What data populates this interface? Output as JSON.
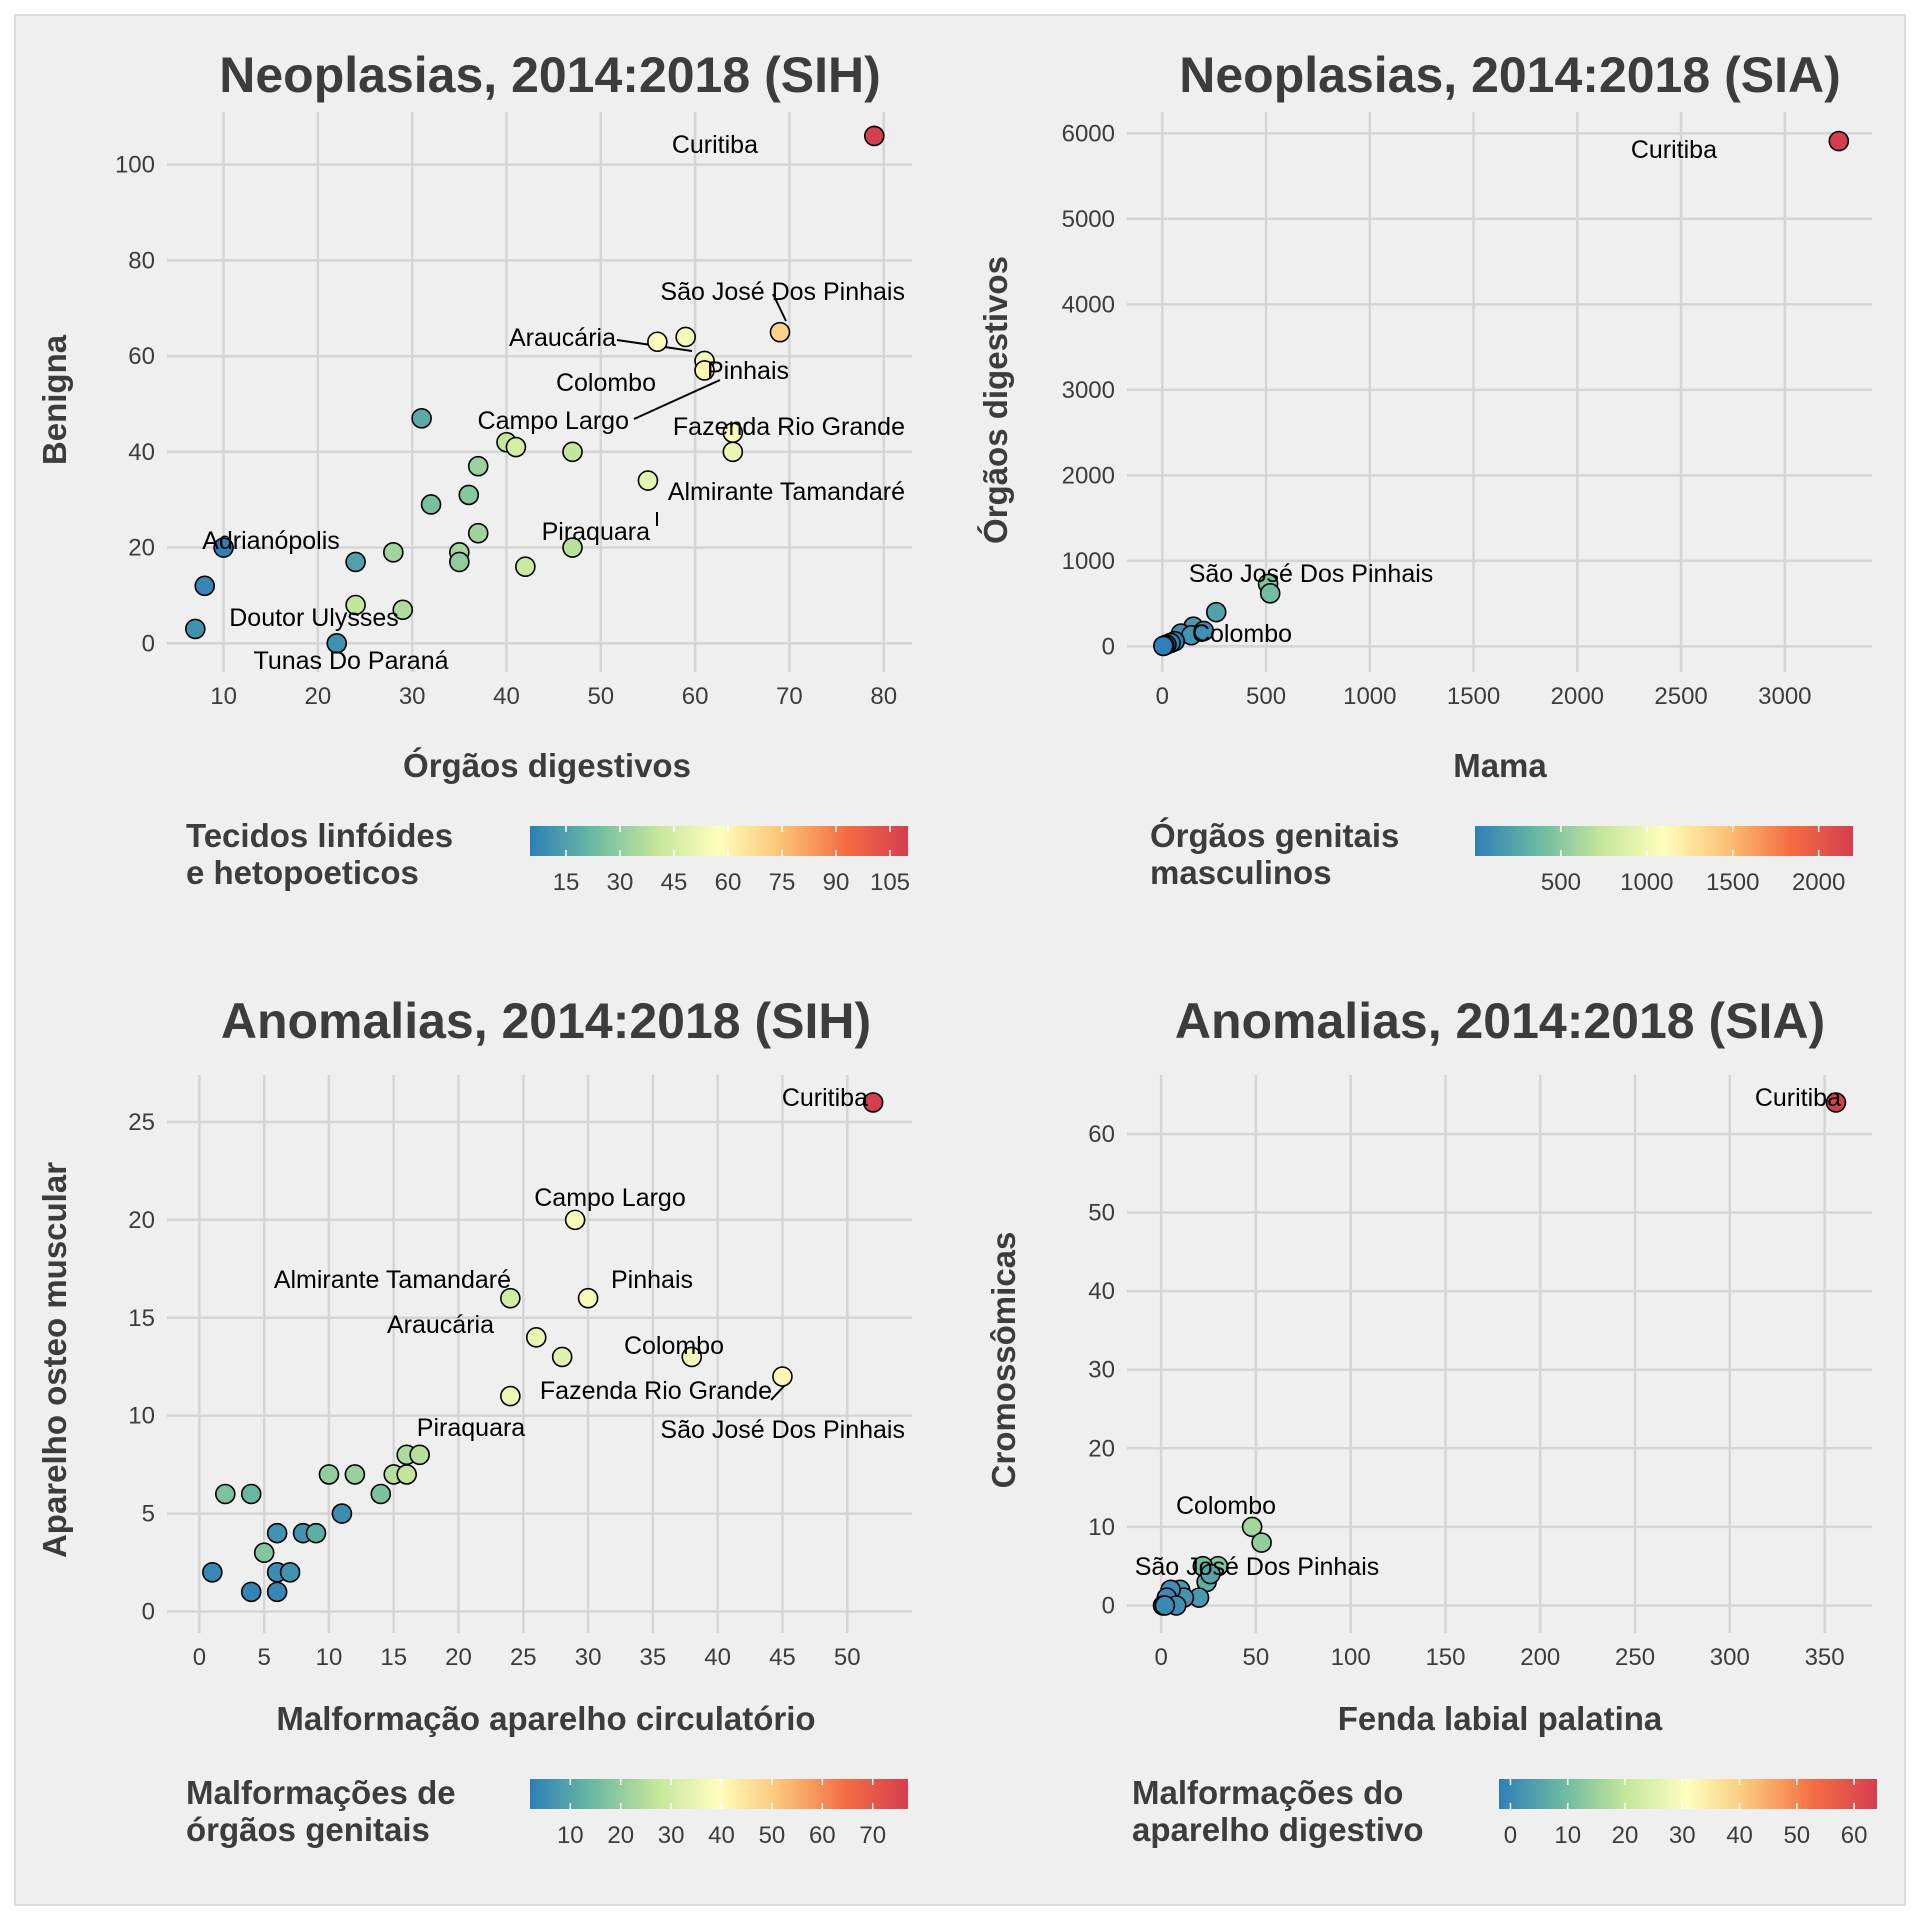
{
  "colors": {
    "background": "#efefef",
    "grid": "#d5d5d5",
    "text": "#3c3c3c",
    "point_stroke": "#000000",
    "scale": [
      "#2f7fb8",
      "#6ab9a2",
      "#c4e69a",
      "#fefebd",
      "#fbc276",
      "#f46d43",
      "#d53e4f"
    ]
  },
  "chart_data": [
    {
      "type": "scatter",
      "title": "Neoplasias, 2014:2018 (SIH)",
      "xlabel": "Órgãos digestivos",
      "ylabel": "Benigna",
      "xlim": [
        4,
        83
      ],
      "ylim": [
        -6,
        111
      ],
      "xticks": [
        10,
        20,
        30,
        40,
        50,
        60,
        70,
        80
      ],
      "yticks": [
        0,
        20,
        40,
        60,
        80,
        100
      ],
      "legend": {
        "title_lines": [
          "Tecidos linfóides",
          "e hetopoeticos"
        ],
        "min": 5,
        "max": 110,
        "ticks": [
          15,
          30,
          45,
          60,
          75,
          90,
          105
        ]
      },
      "points": [
        {
          "x": 79,
          "y": 106,
          "c": 110
        },
        {
          "x": 69,
          "y": 65,
          "c": 70
        },
        {
          "x": 59,
          "y": 64,
          "c": 55
        },
        {
          "x": 56,
          "y": 63,
          "c": 57
        },
        {
          "x": 61,
          "y": 59,
          "c": 55
        },
        {
          "x": 61,
          "y": 57,
          "c": 60
        },
        {
          "x": 31,
          "y": 47,
          "c": 18
        },
        {
          "x": 64,
          "y": 44,
          "c": 57
        },
        {
          "x": 40,
          "y": 42,
          "c": 40
        },
        {
          "x": 41,
          "y": 41,
          "c": 45
        },
        {
          "x": 47,
          "y": 40,
          "c": 40
        },
        {
          "x": 64,
          "y": 40,
          "c": 52
        },
        {
          "x": 37,
          "y": 37,
          "c": 32
        },
        {
          "x": 55,
          "y": 34,
          "c": 50
        },
        {
          "x": 36,
          "y": 31,
          "c": 28
        },
        {
          "x": 32,
          "y": 29,
          "c": 25
        },
        {
          "x": 37,
          "y": 23,
          "c": 33
        },
        {
          "x": 47,
          "y": 20,
          "c": 38
        },
        {
          "x": 28,
          "y": 19,
          "c": 33
        },
        {
          "x": 35,
          "y": 19,
          "c": 34
        },
        {
          "x": 35,
          "y": 17,
          "c": 30
        },
        {
          "x": 24,
          "y": 17,
          "c": 15
        },
        {
          "x": 42,
          "y": 16,
          "c": 42
        },
        {
          "x": 10,
          "y": 20,
          "c": 5
        },
        {
          "x": 8,
          "y": 12,
          "c": 7
        },
        {
          "x": 24,
          "y": 8,
          "c": 40
        },
        {
          "x": 29,
          "y": 7,
          "c": 36
        },
        {
          "x": 7,
          "y": 3,
          "c": 10
        },
        {
          "x": 22,
          "y": 0,
          "c": 10
        }
      ],
      "labels": [
        {
          "text": "Curitiba",
          "x": 79,
          "y": 106
        },
        {
          "text": "São José Dos Pinhais",
          "x": 69,
          "y": 65
        },
        {
          "text": "Araucária",
          "x": 59,
          "y": 64
        },
        {
          "text": "Colombo",
          "x": 61,
          "y": 59
        },
        {
          "text": "Pinhais",
          "x": 61,
          "y": 57
        },
        {
          "text": "Campo Largo",
          "x": 31,
          "y": 47
        },
        {
          "text": "Fazenda Rio Grande",
          "x": 64,
          "y": 44
        },
        {
          "text": "Almirante Tamandaré",
          "x": 64,
          "y": 40
        },
        {
          "text": "Piraquara",
          "x": 55,
          "y": 34
        },
        {
          "text": "Adrianópolis",
          "x": 10,
          "y": 20
        },
        {
          "text": "Doutor Ulysses",
          "x": 24,
          "y": 8
        },
        {
          "text": "Tunas Do Paraná",
          "x": 22,
          "y": 0
        }
      ]
    },
    {
      "type": "scatter",
      "title": "Neoplasias, 2014:2018 (SIA)",
      "xlabel": "Mama",
      "ylabel": "Órgãos digestivos",
      "xlim": [
        -170,
        3420
      ],
      "ylim": [
        -300,
        6250
      ],
      "xticks": [
        0,
        500,
        1000,
        1500,
        2000,
        2500,
        3000
      ],
      "yticks": [
        0,
        1000,
        2000,
        3000,
        4000,
        5000,
        6000
      ],
      "legend": {
        "title_lines": [
          "Órgãos genitais",
          "masculinos"
        ],
        "min": 0,
        "max": 2200,
        "ticks": [
          500,
          1000,
          1500,
          2000
        ]
      },
      "points": [
        {
          "x": 3260,
          "y": 5910,
          "c": 2200
        },
        {
          "x": 510,
          "y": 730,
          "c": 460
        },
        {
          "x": 520,
          "y": 620,
          "c": 400
        },
        {
          "x": 260,
          "y": 400,
          "c": 220
        },
        {
          "x": 150,
          "y": 230,
          "c": 170
        },
        {
          "x": 90,
          "y": 150,
          "c": 80
        },
        {
          "x": 140,
          "y": 130,
          "c": 120
        },
        {
          "x": 200,
          "y": 180,
          "c": 100
        },
        {
          "x": 60,
          "y": 60,
          "c": 40
        },
        {
          "x": 40,
          "y": 40,
          "c": 25
        },
        {
          "x": 20,
          "y": 20,
          "c": 10
        },
        {
          "x": 10,
          "y": 10,
          "c": 5
        },
        {
          "x": 5,
          "y": 5,
          "c": 2
        }
      ],
      "labels": [
        {
          "text": "Curitiba",
          "x": 3260,
          "y": 5910
        },
        {
          "text": "São José Dos Pinhais",
          "x": 510,
          "y": 730
        },
        {
          "text": "Colombo",
          "x": 200,
          "y": 180
        }
      ]
    },
    {
      "type": "scatter",
      "title": "Anomalias, 2014:2018 (SIH)",
      "xlabel": "Malformação aparelho circulatório",
      "ylabel": "Aparelho osteo muscular",
      "xlim": [
        -2.5,
        55
      ],
      "ylim": [
        -1.1,
        27.4
      ],
      "xticks": [
        0,
        5,
        10,
        15,
        20,
        25,
        30,
        35,
        40,
        45,
        50
      ],
      "yticks": [
        0,
        5,
        10,
        15,
        20,
        25
      ],
      "legend": {
        "title_lines": [
          "Malformações de",
          "órgãos genitais"
        ],
        "min": 2,
        "max": 77,
        "ticks": [
          10,
          20,
          30,
          40,
          50,
          60,
          70
        ]
      },
      "points": [
        {
          "x": 52,
          "y": 26,
          "c": 77
        },
        {
          "x": 29,
          "y": 20,
          "c": 38
        },
        {
          "x": 24,
          "y": 16,
          "c": 30
        },
        {
          "x": 30,
          "y": 16,
          "c": 38
        },
        {
          "x": 26,
          "y": 14,
          "c": 35
        },
        {
          "x": 28,
          "y": 13,
          "c": 33
        },
        {
          "x": 38,
          "y": 13,
          "c": 38
        },
        {
          "x": 45,
          "y": 12,
          "c": 40
        },
        {
          "x": 24,
          "y": 11,
          "c": 36
        },
        {
          "x": 16,
          "y": 8,
          "c": 24
        },
        {
          "x": 17,
          "y": 8,
          "c": 25
        },
        {
          "x": 10,
          "y": 7,
          "c": 20
        },
        {
          "x": 12,
          "y": 7,
          "c": 21
        },
        {
          "x": 15,
          "y": 7,
          "c": 25
        },
        {
          "x": 16,
          "y": 7,
          "c": 27
        },
        {
          "x": 14,
          "y": 6,
          "c": 17
        },
        {
          "x": 2,
          "y": 6,
          "c": 17
        },
        {
          "x": 4,
          "y": 6,
          "c": 14
        },
        {
          "x": 11,
          "y": 5,
          "c": 5
        },
        {
          "x": 6,
          "y": 4,
          "c": 6
        },
        {
          "x": 8,
          "y": 4,
          "c": 6
        },
        {
          "x": 9,
          "y": 4,
          "c": 12
        },
        {
          "x": 5,
          "y": 3,
          "c": 18
        },
        {
          "x": 1,
          "y": 2,
          "c": 4
        },
        {
          "x": 6,
          "y": 2,
          "c": 5
        },
        {
          "x": 7,
          "y": 2,
          "c": 6
        },
        {
          "x": 4,
          "y": 1,
          "c": 3
        },
        {
          "x": 6,
          "y": 1,
          "c": 4
        }
      ],
      "labels": [
        {
          "text": "Curitiba",
          "x": 52,
          "y": 26
        },
        {
          "text": "Campo Largo",
          "x": 29,
          "y": 20
        },
        {
          "text": "Almirante Tamandaré",
          "x": 24,
          "y": 16
        },
        {
          "text": "Pinhais",
          "x": 30,
          "y": 16
        },
        {
          "text": "Araucária",
          "x": 26,
          "y": 14
        },
        {
          "text": "Colombo",
          "x": 38,
          "y": 13
        },
        {
          "text": "Fazenda Rio Grande",
          "x": 24,
          "y": 11
        },
        {
          "text": "São José Dos Pinhais",
          "x": 45,
          "y": 12
        },
        {
          "text": "Piraquara",
          "x": 24,
          "y": 11
        }
      ]
    },
    {
      "type": "scatter",
      "title": "Anomalias, 2014:2018 (SIA)",
      "xlabel": "Fenda labial palatina",
      "ylabel": "Cromossômicas",
      "xlim": [
        -18,
        375
      ],
      "ylim": [
        -3.5,
        67.5
      ],
      "xticks": [
        0,
        50,
        100,
        150,
        200,
        250,
        300,
        350
      ],
      "yticks": [
        0,
        10,
        20,
        30,
        40,
        50,
        60
      ],
      "legend": {
        "title_lines": [
          "Malformações do",
          "aparelho digestivo"
        ],
        "min": -2,
        "max": 64,
        "ticks": [
          0,
          10,
          20,
          30,
          40,
          50,
          60
        ]
      },
      "points": [
        {
          "x": 356,
          "y": 64,
          "c": 64
        },
        {
          "x": 48,
          "y": 10,
          "c": 16
        },
        {
          "x": 53,
          "y": 8,
          "c": 14
        },
        {
          "x": 30,
          "y": 5,
          "c": 12
        },
        {
          "x": 22,
          "y": 5,
          "c": 10
        },
        {
          "x": 24,
          "y": 3,
          "c": 7
        },
        {
          "x": 26,
          "y": 4,
          "c": 5
        },
        {
          "x": 20,
          "y": 1,
          "c": 3
        },
        {
          "x": 10,
          "y": 2,
          "c": 3
        },
        {
          "x": 12,
          "y": 1,
          "c": 2
        },
        {
          "x": 5,
          "y": 2,
          "c": 1
        },
        {
          "x": 3,
          "y": 1,
          "c": 0
        },
        {
          "x": 8,
          "y": 0,
          "c": 1
        },
        {
          "x": 1,
          "y": 0,
          "c": 0
        },
        {
          "x": 2,
          "y": 0,
          "c": 0
        }
      ],
      "labels": [
        {
          "text": "Curitiba",
          "x": 356,
          "y": 64
        },
        {
          "text": "Colombo",
          "x": 48,
          "y": 10
        },
        {
          "text": "São José Dos Pinhais",
          "x": 30,
          "y": 5
        }
      ]
    }
  ]
}
